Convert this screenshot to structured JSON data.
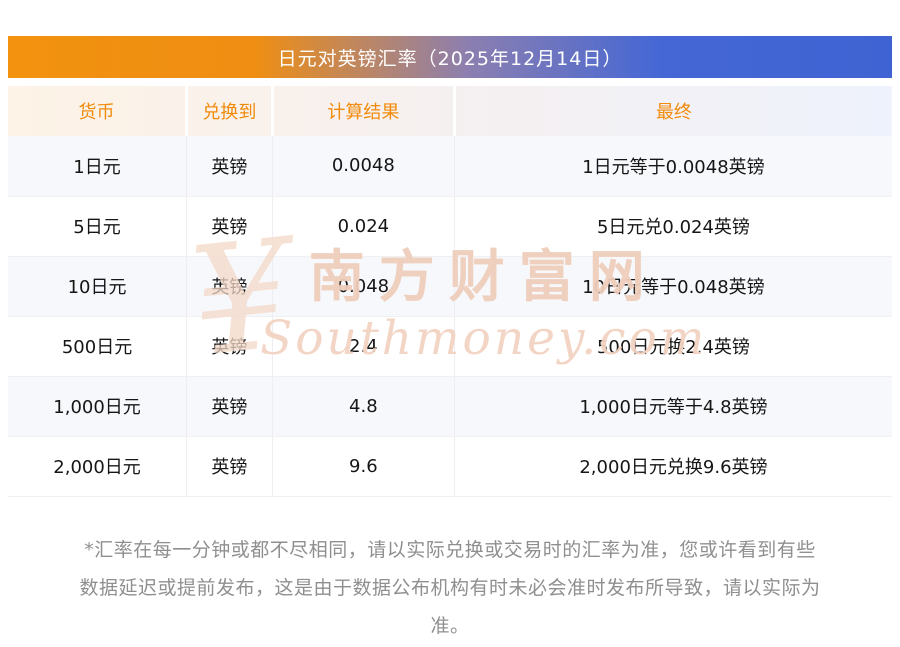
{
  "title": "日元对英镑汇率（2025年12月14日）",
  "table": {
    "headers": [
      "货币",
      "兑换到",
      "计算结果",
      "最终"
    ],
    "rows": [
      [
        "1日元",
        "英镑",
        "0.0048",
        "1日元等于0.0048英镑"
      ],
      [
        "5日元",
        "英镑",
        "0.024",
        "5日元兑0.024英镑"
      ],
      [
        "10日元",
        "英镑",
        "0.048",
        "10日元等于0.048英镑"
      ],
      [
        "500日元",
        "英镑",
        "2.4",
        "500日元换2.4英镑"
      ],
      [
        "1,000日元",
        "英镑",
        "4.8",
        "1,000日元等于4.8英镑"
      ],
      [
        "2,000日元",
        "英镑",
        "9.6",
        "2,000日元兑换9.6英镑"
      ]
    ]
  },
  "watermark": {
    "symbol": "¥",
    "cn": "南方财富网",
    "en": "Southmoney.com"
  },
  "footnote": "*汇率在每一分钟或都不尽相同，请以实际兑换或交易时的汇率为准，您或许看到有些数据延迟或提前发布，这是由于数据公布机构有时未必会准时发布所导致，请以实际为准。",
  "colors": {
    "title_gradient_left": "#f2920f",
    "title_gradient_right": "#3f63d2",
    "header_text": "#f28b0c",
    "header_bg_left": "#fdf3e6",
    "header_bg_right": "#eef2fc",
    "row_alt_bg": "#f7f8fb",
    "body_text": "#161616",
    "footnote_text": "#8f8f8f",
    "watermark": "#eeccba"
  }
}
